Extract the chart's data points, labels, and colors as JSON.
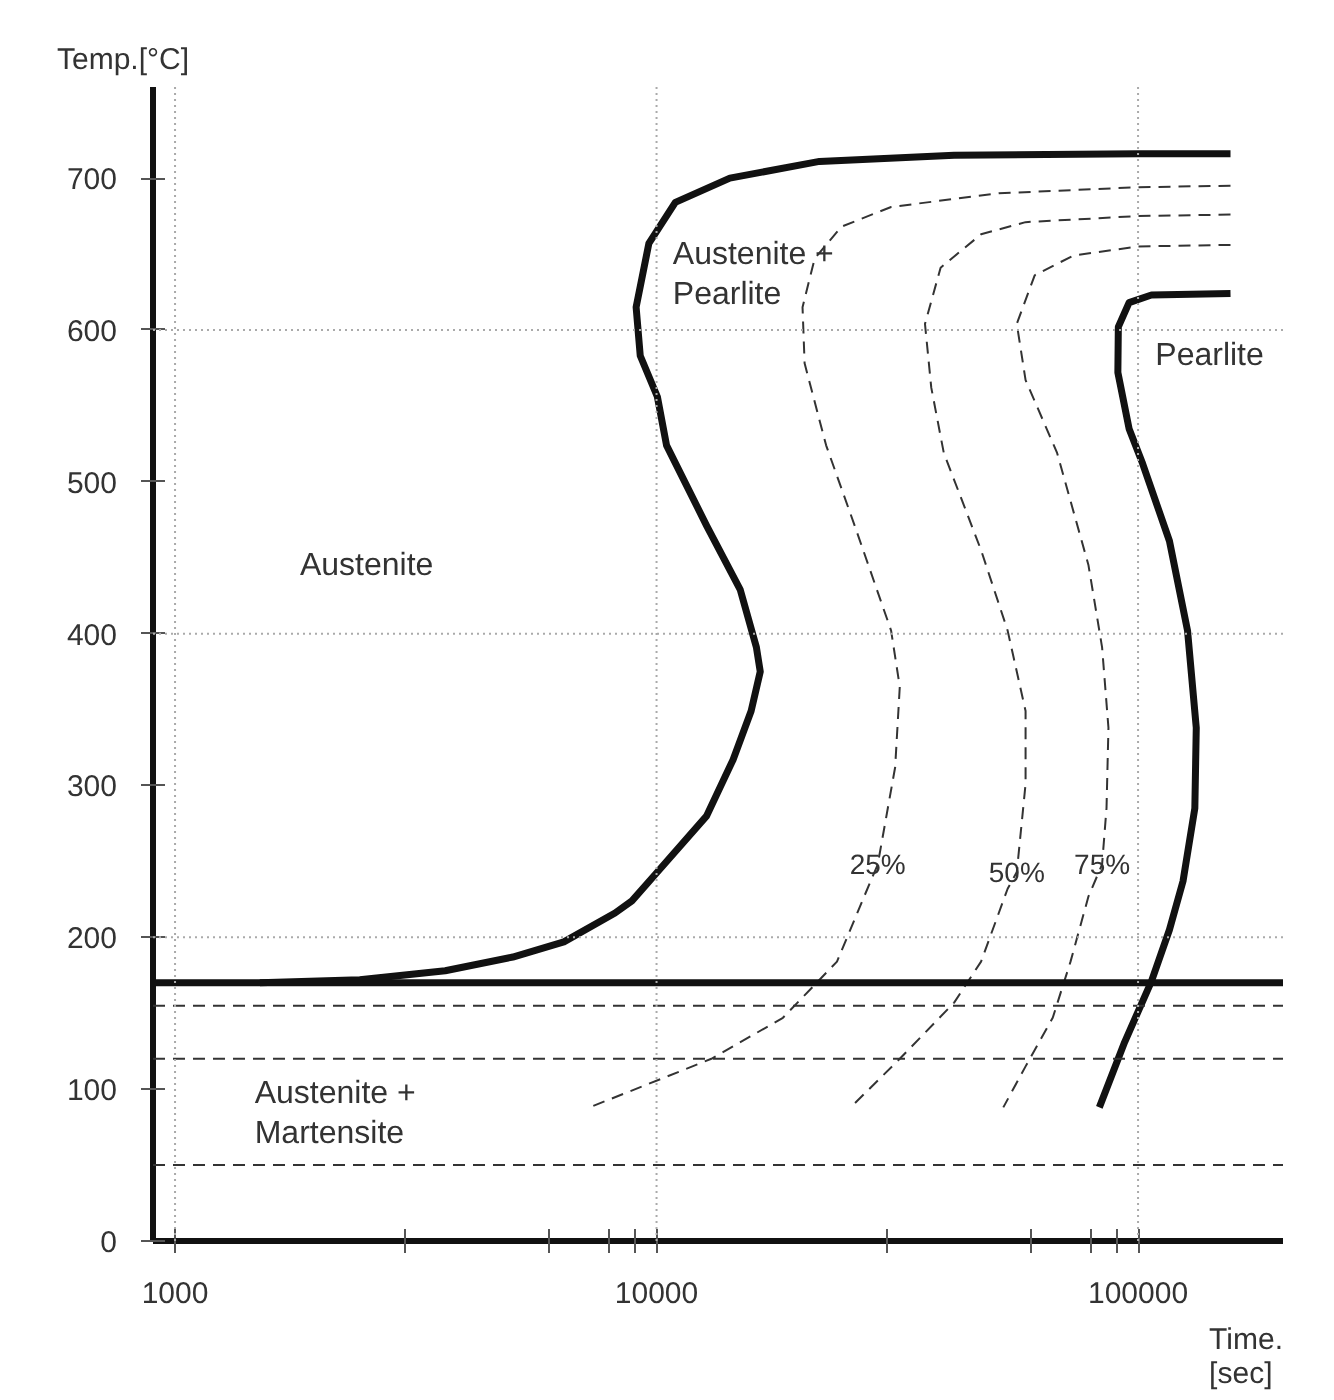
{
  "chart_data": {
    "type": "line",
    "xlabel": "Time.\n[sec]",
    "ylabel": "Temp.[°C]",
    "log": "x",
    "xlim": [
      900,
      200000
    ],
    "ylim": [
      0,
      760
    ],
    "xticks": [
      1000,
      {
        "value": 3000,
        "label": null
      },
      {
        "value": 6000,
        "label": null
      },
      {
        "value": 8000,
        "label": null
      },
      {
        "value": 9000,
        "label": null
      },
      10000,
      {
        "value": 30000,
        "label": null
      },
      {
        "value": 60000,
        "label": null
      },
      {
        "value": 80000,
        "label": null
      },
      {
        "value": 90000,
        "label": null
      },
      100000
    ],
    "yticks": [
      0,
      100,
      200,
      300,
      400,
      500,
      600,
      700
    ],
    "series": [
      {
        "color": "#111111",
        "line_style": "solid",
        "x": [
          155600,
          100000,
          41500,
          21800,
          14200,
          10940,
          9640,
          9070,
          9250,
          10040,
          10490,
          12710,
          14920,
          16120,
          16420,
          15720,
          14420,
          12710,
          10040,
          8890,
          8200,
          6420,
          5030,
          3640,
          2420,
          1500
        ],
        "values": [
          716,
          716,
          715,
          711,
          700,
          684,
          657,
          615,
          583,
          556,
          524,
          471,
          429,
          391,
          375,
          349,
          317,
          280,
          243,
          224,
          216,
          197,
          187,
          178,
          172,
          170
        ]
      },
      {
        "name": "25%",
        "color": "#333333",
        "line_style": "dashed",
        "x": [
          155600,
          100000,
          51400,
          30700,
          24200,
          21300,
          20100,
          20300,
          22500,
          25800,
          30700,
          32000,
          31300,
          28800,
          27000,
          23700,
          18300,
          13000,
          7260
        ],
        "values": [
          695,
          694,
          690,
          681,
          668,
          647,
          615,
          578,
          524,
          471,
          402,
          365,
          312,
          248,
          227,
          184,
          147,
          120,
          88
        ]
      },
      {
        "name": "50%",
        "color": "#333333",
        "line_style": "dashed",
        "x": [
          155600,
          100000,
          58400,
          47200,
          38900,
          36100,
          37200,
          39500,
          47200,
          53600,
          58400,
          58400,
          56000,
          53600,
          47200,
          41500,
          32000,
          25300
        ],
        "values": [
          676,
          675,
          671,
          663,
          641,
          604,
          562,
          519,
          455,
          402,
          349,
          301,
          243,
          232,
          184,
          157,
          120,
          88
        ]
      },
      {
        "name": "75%",
        "color": "#333333",
        "line_style": "dashed",
        "x": [
          155600,
          100000,
          73400,
          61000,
          56000,
          58400,
          67900,
          78900,
          84200,
          86800,
          86000,
          84200,
          78900,
          72400,
          66500,
          58400,
          52500
        ],
        "values": [
          656,
          655,
          649,
          636,
          604,
          567,
          519,
          445,
          391,
          338,
          285,
          248,
          227,
          184,
          147,
          115,
          88
        ]
      },
      {
        "color": "#111111",
        "line_style": "solid",
        "x": [
          155600,
          106600,
          95800,
          91000,
          90800,
          95800,
          102200,
          116200,
          126700,
          132100,
          131200,
          124000,
          116200,
          106600,
          93800,
          83100
        ],
        "values": [
          624,
          623,
          618,
          602,
          572,
          535,
          512,
          461,
          402,
          338,
          285,
          237,
          205,
          171,
          131,
          88
        ]
      }
    ],
    "ref_lines": [
      {
        "axis": "y",
        "value": 170,
        "color": "#111111",
        "line_style": "solid"
      },
      {
        "axis": "y",
        "value": 155,
        "color": "#333333",
        "line_style": "dashed"
      },
      {
        "axis": "y",
        "value": 120,
        "color": "#333333",
        "line_style": "dashed"
      },
      {
        "axis": "y",
        "value": 50,
        "color": "#333333",
        "line_style": "dashed"
      },
      {
        "axis": "y",
        "value": 200,
        "color": "#aaaaaa",
        "line_style": "dotted"
      },
      {
        "axis": "y",
        "value": 400,
        "color": "#aaaaaa",
        "line_style": "dotted"
      },
      {
        "axis": "y",
        "value": 600,
        "color": "#aaaaaa",
        "line_style": "dotted"
      },
      {
        "axis": "x",
        "value": 1000,
        "color": "#aaaaaa",
        "line_style": "dotted"
      },
      {
        "axis": "x",
        "value": 10000,
        "color": "#aaaaaa",
        "line_style": "dotted"
      },
      {
        "axis": "x",
        "value": 100000,
        "color": "#aaaaaa",
        "line_style": "dotted"
      }
    ],
    "annotations": [
      "Austenite",
      "Austenite +\nPearlite",
      "Pearlite",
      "Austenite +\nMartensite"
    ]
  }
}
